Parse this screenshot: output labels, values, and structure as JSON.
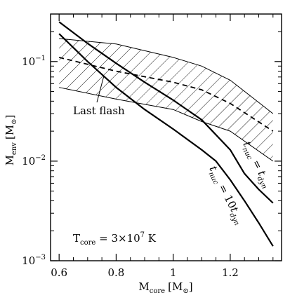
{
  "chart_data": {
    "type": "line",
    "title": "",
    "xlabel": {
      "main": "M",
      "sub": "core",
      "unit": "[M",
      "unit_sub": "⊙",
      "unit_close": "]"
    },
    "ylabel": {
      "main": "M",
      "sub": "env",
      "unit": "[M",
      "unit_sub": "⊙",
      "unit_close": "]"
    },
    "xlim": [
      0.57,
      1.38
    ],
    "ylim": [
      0.001,
      0.3
    ],
    "yscale": "log",
    "x_ticks": [
      {
        "value": 0.6,
        "label": "0.6"
      },
      {
        "value": 0.8,
        "label": "0.8"
      },
      {
        "value": 1.0,
        "label": "1"
      },
      {
        "value": 1.2,
        "label": "1.2"
      }
    ],
    "y_ticks": [
      {
        "value": 0.1,
        "label_base": "10",
        "label_exp": "−1"
      },
      {
        "value": 0.01,
        "label_base": "10",
        "label_exp": "−2"
      },
      {
        "value": 0.001,
        "label_base": "10",
        "label_exp": "−3"
      }
    ],
    "band": {
      "label": "Last flash",
      "upper": [
        [
          0.6,
          0.17
        ],
        [
          0.8,
          0.15
        ],
        [
          1.0,
          0.11
        ],
        [
          1.1,
          0.09
        ],
        [
          1.2,
          0.065
        ],
        [
          1.35,
          0.03
        ]
      ],
      "lower": [
        [
          0.6,
          0.055
        ],
        [
          0.8,
          0.042
        ],
        [
          1.0,
          0.033
        ],
        [
          1.1,
          0.025
        ],
        [
          1.2,
          0.02
        ],
        [
          1.35,
          0.01
        ]
      ],
      "center": [
        [
          0.6,
          0.11
        ],
        [
          0.8,
          0.08
        ],
        [
          1.0,
          0.062
        ],
        [
          1.1,
          0.052
        ],
        [
          1.2,
          0.038
        ],
        [
          1.35,
          0.02
        ]
      ]
    },
    "series": [
      {
        "name": "tnuc = tdyn",
        "label_parts": {
          "t": "t",
          "sub1": "nuc",
          "eq": " = ",
          "t2": "t",
          "sub2": "dyn"
        },
        "points": [
          [
            0.6,
            0.25
          ],
          [
            0.7,
            0.152
          ],
          [
            0.8,
            0.096
          ],
          [
            0.9,
            0.062
          ],
          [
            1.0,
            0.041
          ],
          [
            1.1,
            0.026
          ],
          [
            1.2,
            0.013
          ],
          [
            1.25,
            0.0075
          ],
          [
            1.3,
            0.0052
          ],
          [
            1.35,
            0.0038
          ]
        ]
      },
      {
        "name": "tnuc = 10tdyn",
        "label_parts": {
          "t": "t",
          "sub1": "nuc",
          "eq": " = 10",
          "t2": "t",
          "sub2": "dyn"
        },
        "points": [
          [
            0.6,
            0.19
          ],
          [
            0.7,
            0.1
          ],
          [
            0.8,
            0.055
          ],
          [
            0.9,
            0.033
          ],
          [
            1.0,
            0.021
          ],
          [
            1.1,
            0.013
          ],
          [
            1.15,
            0.01
          ],
          [
            1.2,
            0.0065
          ],
          [
            1.25,
            0.004
          ],
          [
            1.3,
            0.0024
          ],
          [
            1.35,
            0.0014
          ]
        ]
      }
    ],
    "annotation": {
      "text_main": "T",
      "text_sub": "core",
      "text_eq": " = 3×10",
      "text_exp": "7",
      "text_unit": " K"
    }
  }
}
